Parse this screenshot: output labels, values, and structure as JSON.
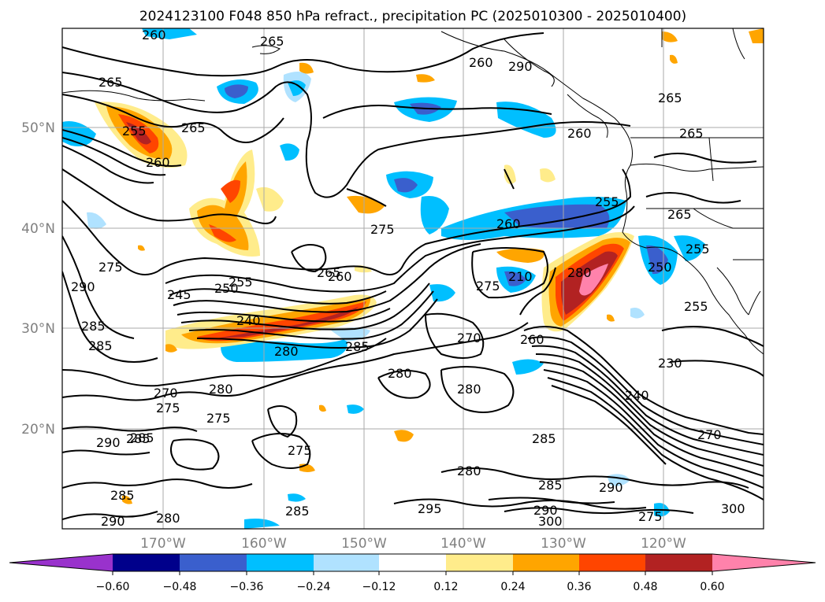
{
  "title": "2024123100 F048 850 hPa refract., precipitation PC (2025010300 - 2025010400)",
  "longitude_labels": [
    "170°W",
    "160°W",
    "150°W",
    "140°W",
    "130°W",
    "120°W"
  ],
  "latitude_labels": [
    "50°N",
    "40°N",
    "30°N",
    "20°N"
  ],
  "colorbar": {
    "ticks": [
      "−0.60",
      "−0.48",
      "−0.36",
      "−0.24",
      "−0.12",
      "0.12",
      "0.24",
      "0.36",
      "0.48",
      "0.60"
    ],
    "colors": [
      "#9932cc",
      "#00008b",
      "#3a5fcd",
      "#00bfff",
      "#b0e2ff",
      "#ffffff",
      "#ffec8b",
      "#ffa500",
      "#ff4500",
      "#b22222",
      "#ff82ab"
    ]
  },
  "contour_labels": [
    "260",
    "265",
    "260",
    "290",
    "265",
    "255",
    "260",
    "265",
    "265",
    "265",
    "260",
    "255",
    "260",
    "265",
    "255",
    "275",
    "290",
    "245",
    "250",
    "255",
    "265",
    "260",
    "240",
    "280",
    "285",
    "275",
    "280",
    "210",
    "275",
    "270",
    "260",
    "250",
    "255",
    "285",
    "285",
    "230",
    "280",
    "280",
    "240",
    "270",
    "270",
    "275",
    "280",
    "275",
    "290",
    "285",
    "275",
    "285",
    "285",
    "290",
    "285",
    "290",
    "300",
    "275",
    "280",
    "290",
    "285",
    "295",
    "280",
    "285",
    "300"
  ],
  "colors": {
    "land_border": "#000000",
    "grid": "#aaaaaa",
    "axis_label": "#808080"
  }
}
